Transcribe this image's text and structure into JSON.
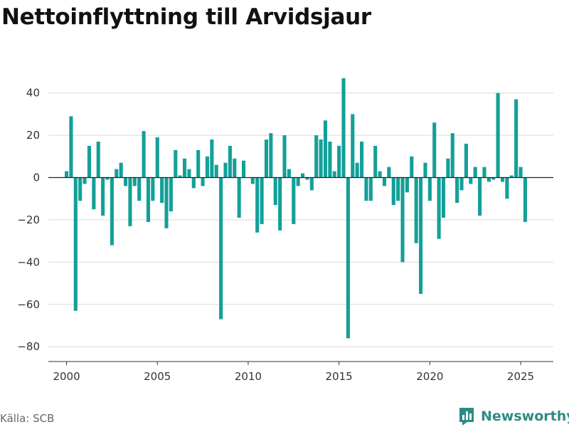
{
  "title": "Nettoinflyttning till Arvidsjaur",
  "source": "Källa: SCB",
  "brand": {
    "name": "Newsworthy",
    "icon": "bar-chart-logo-icon"
  },
  "colors": {
    "bar": "#13a098",
    "zero_line": "#222222",
    "grid": "#d9d9d9",
    "brand": "#2e8b84"
  },
  "chart_data": {
    "type": "bar",
    "title": "Nettoinflyttning till Arvidsjaur",
    "xlabel": "",
    "ylabel": "",
    "ylim": [
      -87,
      52
    ],
    "xlim": [
      1999.0,
      2026.8
    ],
    "grid": true,
    "yticks": [
      40,
      20,
      0,
      -20,
      -40,
      -60,
      -80
    ],
    "ytick_labels": [
      "40",
      "20",
      "0",
      "−20",
      "−40",
      "−60",
      "−80"
    ],
    "xticks": [
      2000,
      2005,
      2010,
      2015,
      2020,
      2025
    ],
    "xtick_labels": [
      "2000",
      "2005",
      "2010",
      "2015",
      "2020",
      "2025"
    ],
    "x": [
      2000.0,
      2000.25,
      2000.5,
      2000.75,
      2001.0,
      2001.25,
      2001.5,
      2001.75,
      2002.0,
      2002.25,
      2002.5,
      2002.75,
      2003.0,
      2003.25,
      2003.5,
      2003.75,
      2004.0,
      2004.25,
      2004.5,
      2004.75,
      2005.0,
      2005.25,
      2005.5,
      2005.75,
      2006.0,
      2006.25,
      2006.5,
      2006.75,
      2007.0,
      2007.25,
      2007.5,
      2007.75,
      2008.0,
      2008.25,
      2008.5,
      2008.75,
      2009.0,
      2009.25,
      2009.5,
      2009.75,
      2010.0,
      2010.25,
      2010.5,
      2010.75,
      2011.0,
      2011.25,
      2011.5,
      2011.75,
      2012.0,
      2012.25,
      2012.5,
      2012.75,
      2013.0,
      2013.25,
      2013.5,
      2013.75,
      2014.0,
      2014.25,
      2014.5,
      2014.75,
      2015.0,
      2015.25,
      2015.5,
      2015.75,
      2016.0,
      2016.25,
      2016.5,
      2016.75,
      2017.0,
      2017.25,
      2017.5,
      2017.75,
      2018.0,
      2018.25,
      2018.5,
      2018.75,
      2019.0,
      2019.25,
      2019.5,
      2019.75,
      2020.0,
      2020.25,
      2020.5,
      2020.75,
      2021.0,
      2021.25,
      2021.5,
      2021.75,
      2022.0,
      2022.25,
      2022.5,
      2022.75,
      2023.0,
      2023.25,
      2023.5,
      2023.75,
      2024.0,
      2024.25,
      2024.5,
      2024.75,
      2025.0,
      2025.25
    ],
    "values": [
      3,
      29,
      -63,
      -11,
      -3,
      15,
      -15,
      17,
      -18,
      -1,
      -32,
      4,
      7,
      -4,
      -23,
      -4,
      -11,
      22,
      -21,
      -11,
      19,
      -12,
      -24,
      -16,
      13,
      1,
      9,
      4,
      -5,
      13,
      -4,
      10,
      18,
      6,
      -67,
      7,
      15,
      9,
      -19,
      8,
      0,
      -3,
      -26,
      -22,
      18,
      21,
      -13,
      -25,
      20,
      4,
      -22,
      -4,
      2,
      -1,
      -6,
      20,
      18,
      27,
      17,
      3,
      15,
      47,
      -76,
      30,
      7,
      17,
      -11,
      -11,
      15,
      3,
      -4,
      5,
      -13,
      -11,
      -40,
      -7,
      10,
      -31,
      -55,
      7,
      -11,
      26,
      -29,
      -19,
      9,
      21,
      -12,
      -6,
      16,
      -3,
      5,
      -18,
      5,
      -2,
      -1,
      40,
      -2,
      -10,
      1,
      37,
      5,
      -21
    ]
  }
}
